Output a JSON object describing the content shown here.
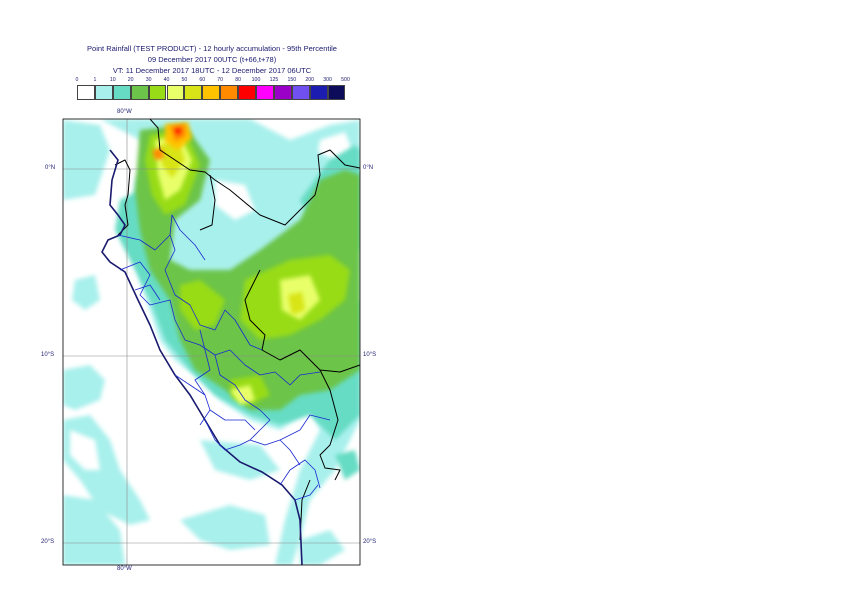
{
  "title": {
    "line1": "Point Rainfall (TEST PRODUCT) - 12 hourly accumulation - 95th Percentile",
    "line2": "09 December 2017 00UTC (t+66,t+78)",
    "line3": "VT: 11 December 2017 18UTC - 12 December 2017 06UTC"
  },
  "legend": {
    "labels": [
      "0",
      "1",
      "10",
      "20",
      "30",
      "40",
      "50",
      "60",
      "70",
      "80",
      "100",
      "125",
      "150",
      "200",
      "300",
      "500"
    ],
    "colors": [
      "#ffffff",
      "#a8f0ec",
      "#66dcc4",
      "#6cc44a",
      "#98dc18",
      "#e8ff6a",
      "#d8e418",
      "#ffc200",
      "#ff8a00",
      "#ff0000",
      "#ff00ff",
      "#9a00c8",
      "#7050f0",
      "#1c1cb0",
      "#0c0c5a"
    ]
  },
  "map": {
    "lon_label_top": "80°W",
    "lon_label_bottom": "80°W",
    "lat_labels": [
      "0°N",
      "10°S",
      "20°S"
    ]
  }
}
